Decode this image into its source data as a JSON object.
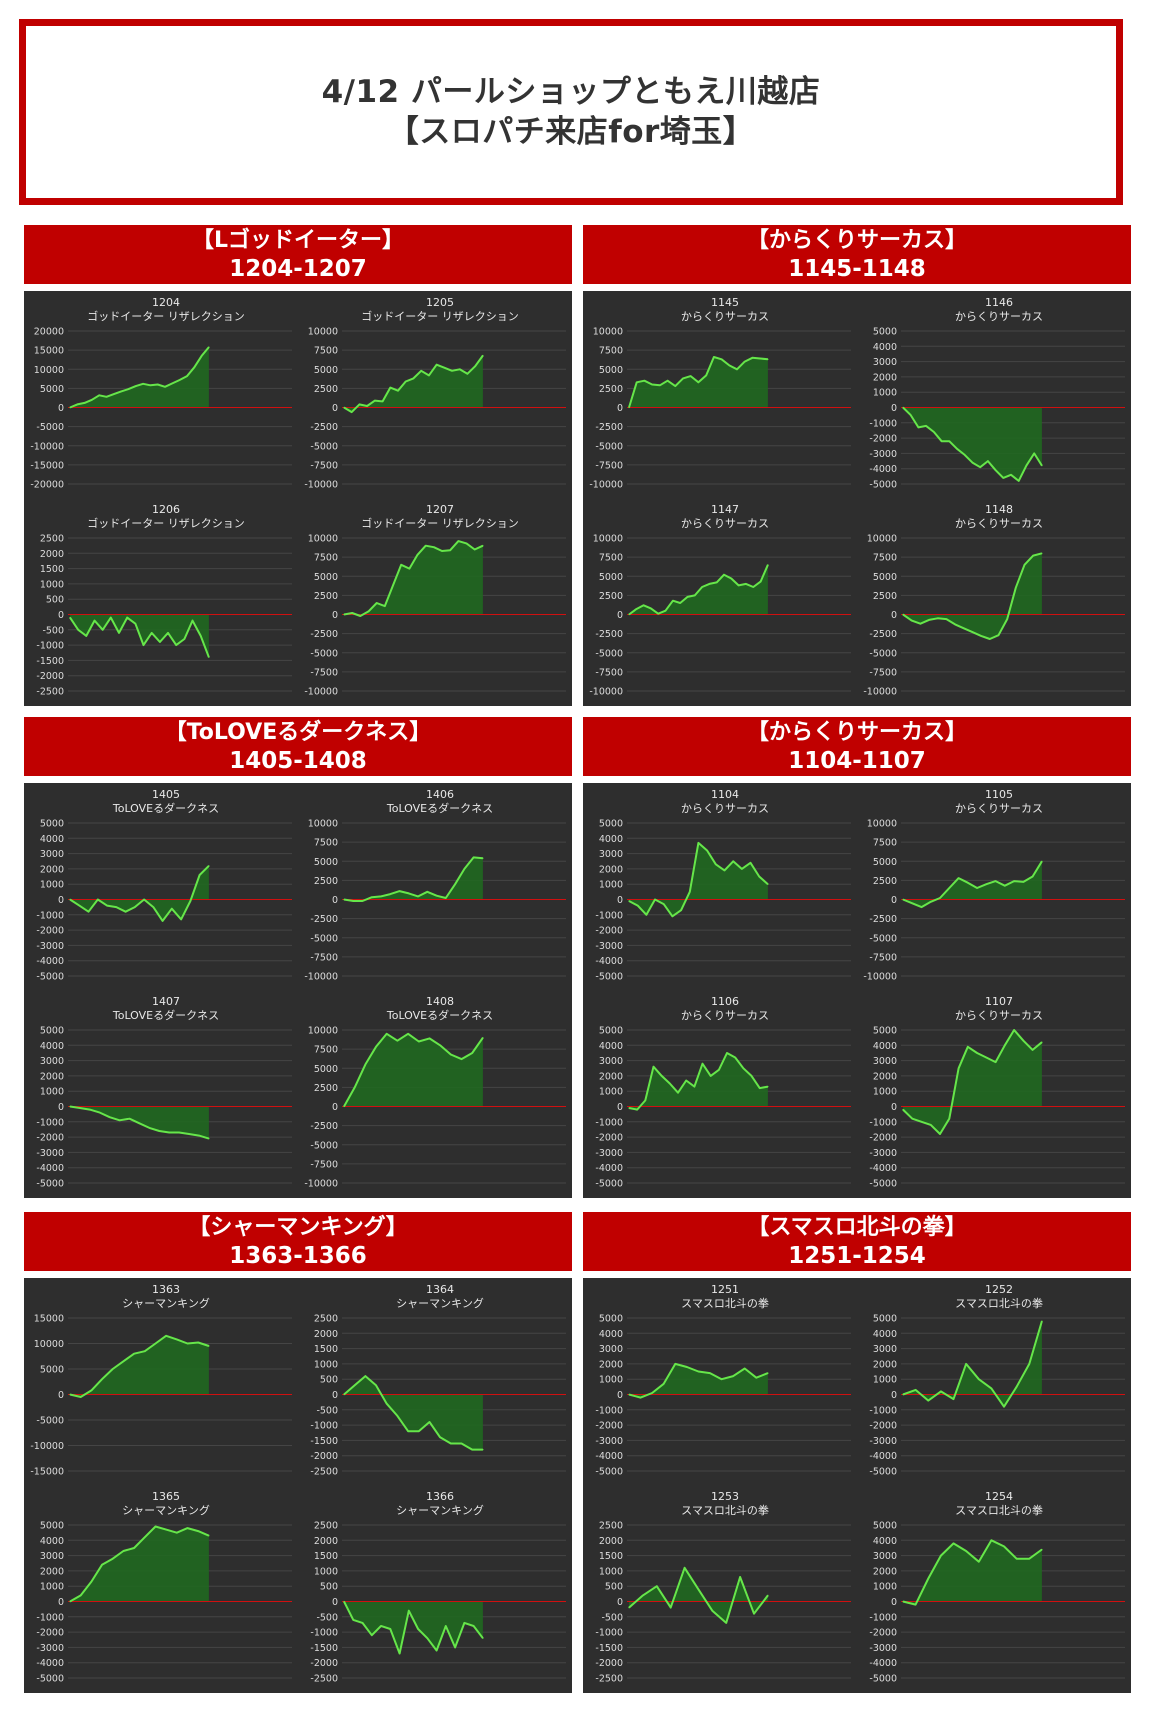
{
  "header": {
    "line1": "4/12 パールショップともえ川越店",
    "line2": "【スロパチ来店for埼玉】"
  },
  "colors": {
    "accent": "#c00000",
    "panel": "#2e2e2e",
    "line": "#66e64a",
    "fill": "#1f6b1f",
    "zero": "#d01010"
  },
  "groups": [
    {
      "title": "【Lゴッドイーター】",
      "range": "1204-1207",
      "charts": [
        {
          "type": "area",
          "number": "1204",
          "name": "ゴッドイーター リザレクション",
          "yticks": [
            20000,
            15000,
            10000,
            5000,
            0,
            -5000,
            -10000,
            -15000,
            -20000
          ],
          "ylim": [
            -20000,
            20000
          ],
          "values": [
            0,
            800,
            1200,
            2000,
            3200,
            2800,
            3500,
            4200,
            4800,
            5600,
            6200,
            5800,
            6000,
            5400,
            6300,
            7200,
            8200,
            10500,
            13500,
            15800
          ]
        },
        {
          "type": "area",
          "number": "1205",
          "name": "ゴッドイーター リザレクション",
          "yticks": [
            10000,
            7500,
            5000,
            2500,
            0,
            -2500,
            -5000,
            -7500,
            -10000
          ],
          "ylim": [
            -10000,
            10000
          ],
          "values": [
            0,
            -600,
            400,
            200,
            900,
            800,
            2600,
            2200,
            3400,
            3800,
            4800,
            4200,
            5600,
            5200,
            4800,
            5000,
            4400,
            5400,
            6800
          ]
        },
        {
          "type": "area",
          "number": "1206",
          "name": "ゴッドイーター リザレクション",
          "yticks": [
            2500,
            2000,
            1500,
            1000,
            500,
            0,
            -500,
            -1000,
            -1500,
            -2000,
            -2500
          ],
          "ylim": [
            -2500,
            2500
          ],
          "values": [
            -100,
            -500,
            -700,
            -200,
            -500,
            -100,
            -600,
            -100,
            -300,
            -1000,
            -600,
            -900,
            -600,
            -1000,
            -800,
            -200,
            -700,
            -1400
          ]
        },
        {
          "type": "area",
          "number": "1207",
          "name": "ゴッドイーター リザレクション",
          "yticks": [
            10000,
            7500,
            5000,
            2500,
            0,
            -2500,
            -5000,
            -7500,
            -10000
          ],
          "ylim": [
            -10000,
            10000
          ],
          "values": [
            0,
            200,
            -200,
            400,
            1500,
            1100,
            3800,
            6500,
            6000,
            7800,
            9000,
            8800,
            8300,
            8400,
            9600,
            9300,
            8500,
            9000
          ]
        }
      ]
    },
    {
      "title": "【からくりサーカス】",
      "range": "1145-1148",
      "charts": [
        {
          "type": "area",
          "number": "1145",
          "name": "からくりサーカス",
          "yticks": [
            10000,
            7500,
            5000,
            2500,
            0,
            -2500,
            -5000,
            -7500,
            -10000
          ],
          "ylim": [
            -10000,
            10000
          ],
          "values": [
            0,
            3300,
            3500,
            3000,
            2900,
            3500,
            2800,
            3800,
            4100,
            3300,
            4200,
            6600,
            6300,
            5500,
            5000,
            6000,
            6500,
            6400,
            6300
          ]
        },
        {
          "type": "area",
          "number": "1146",
          "name": "からくりサーカス",
          "yticks": [
            5000,
            4000,
            3000,
            2000,
            1000,
            0,
            -1000,
            -2000,
            -3000,
            -4000,
            -5000
          ],
          "ylim": [
            -5000,
            5000
          ],
          "values": [
            0,
            -500,
            -1300,
            -1200,
            -1600,
            -2200,
            -2200,
            -2700,
            -3100,
            -3600,
            -3900,
            -3500,
            -4100,
            -4600,
            -4400,
            -4800,
            -3800,
            -3000,
            -3800
          ]
        },
        {
          "type": "area",
          "number": "1147",
          "name": "からくりサーカス",
          "yticks": [
            10000,
            7500,
            5000,
            2500,
            0,
            -2500,
            -5000,
            -7500,
            -10000
          ],
          "ylim": [
            -10000,
            10000
          ],
          "values": [
            0,
            700,
            1200,
            800,
            100,
            500,
            1800,
            1500,
            2300,
            2500,
            3600,
            4000,
            4200,
            5200,
            4700,
            3800,
            4000,
            3600,
            4300,
            6500
          ]
        },
        {
          "type": "area",
          "number": "1148",
          "name": "からくりサーカス",
          "yticks": [
            10000,
            7500,
            5000,
            2500,
            0,
            -2500,
            -5000,
            -7500,
            -10000
          ],
          "ylim": [
            -10000,
            10000
          ],
          "values": [
            0,
            -800,
            -1200,
            -700,
            -500,
            -600,
            -1300,
            -1800,
            -2300,
            -2800,
            -3200,
            -2700,
            -600,
            3500,
            6500,
            7700,
            8000
          ]
        }
      ]
    },
    {
      "title": "【ToLOVEるダークネス】",
      "range": "1405-1408",
      "charts": [
        {
          "type": "area",
          "number": "1405",
          "name": "ToLOVEるダークネス",
          "yticks": [
            5000,
            4000,
            3000,
            2000,
            1000,
            0,
            -1000,
            -2000,
            -3000,
            -4000,
            -5000
          ],
          "ylim": [
            -5000,
            5000
          ],
          "values": [
            0,
            -400,
            -800,
            0,
            -400,
            -500,
            -800,
            -500,
            0,
            -500,
            -1400,
            -600,
            -1300,
            -100,
            1600,
            2200
          ]
        },
        {
          "type": "area",
          "number": "1406",
          "name": "ToLOVEるダークネス",
          "yticks": [
            10000,
            7500,
            5000,
            2500,
            0,
            -2500,
            -5000,
            -7500,
            -10000
          ],
          "ylim": [
            -10000,
            10000
          ],
          "values": [
            0,
            -200,
            -200,
            300,
            400,
            700,
            1100,
            800,
            400,
            1000,
            500,
            200,
            2000,
            4000,
            5500,
            5400
          ]
        },
        {
          "type": "area",
          "number": "1407",
          "name": "ToLOVEるダークネス",
          "yticks": [
            5000,
            4000,
            3000,
            2000,
            1000,
            0,
            -1000,
            -2000,
            -3000,
            -4000,
            -5000
          ],
          "ylim": [
            -5000,
            5000
          ],
          "values": [
            0,
            -100,
            -200,
            -400,
            -700,
            -900,
            -800,
            -1100,
            -1400,
            -1600,
            -1700,
            -1700,
            -1800,
            -1900,
            -2100
          ]
        },
        {
          "type": "area",
          "number": "1408",
          "name": "ToLOVEるダークネス",
          "yticks": [
            10000,
            7500,
            5000,
            2500,
            0,
            -2500,
            -5000,
            -7500,
            -10000
          ],
          "ylim": [
            -10000,
            10000
          ],
          "values": [
            0,
            2500,
            5500,
            7800,
            9500,
            8600,
            9500,
            8500,
            8900,
            8000,
            6800,
            6200,
            7000,
            9000
          ]
        }
      ]
    },
    {
      "title": "【からくりサーカス】",
      "range": "1104-1107",
      "charts": [
        {
          "type": "area",
          "number": "1104",
          "name": "からくりサーカス",
          "yticks": [
            5000,
            4000,
            3000,
            2000,
            1000,
            0,
            -1000,
            -2000,
            -3000,
            -4000,
            -5000
          ],
          "ylim": [
            -5000,
            5000
          ],
          "values": [
            -100,
            -400,
            -1000,
            0,
            -300,
            -1100,
            -700,
            500,
            3700,
            3200,
            2300,
            1900,
            2500,
            2000,
            2400,
            1500,
            1000
          ]
        },
        {
          "type": "area",
          "number": "1105",
          "name": "からくりサーカス",
          "yticks": [
            10000,
            7500,
            5000,
            2500,
            0,
            -2500,
            -5000,
            -7500,
            -10000
          ],
          "ylim": [
            -10000,
            10000
          ],
          "values": [
            0,
            -500,
            -1000,
            -300,
            200,
            1500,
            2800,
            2200,
            1500,
            2000,
            2400,
            1800,
            2400,
            2300,
            3000,
            5000
          ]
        },
        {
          "type": "area",
          "number": "1106",
          "name": "からくりサーカス",
          "yticks": [
            5000,
            4000,
            3000,
            2000,
            1000,
            0,
            -1000,
            -2000,
            -3000,
            -4000,
            -5000
          ],
          "ylim": [
            -5000,
            5000
          ],
          "values": [
            -100,
            -200,
            400,
            2600,
            2000,
            1500,
            900,
            1700,
            1300,
            2800,
            2000,
            2400,
            3500,
            3200,
            2500,
            2000,
            1200,
            1300
          ]
        },
        {
          "type": "area",
          "number": "1107",
          "name": "からくりサーカス",
          "yticks": [
            5000,
            4000,
            3000,
            2000,
            1000,
            0,
            -1000,
            -2000,
            -3000,
            -4000,
            -5000
          ],
          "ylim": [
            -5000,
            5000
          ],
          "values": [
            -200,
            -800,
            -1000,
            -1200,
            -1800,
            -800,
            2500,
            3900,
            3500,
            3200,
            2900,
            4000,
            5000,
            4300,
            3700,
            4200
          ]
        }
      ]
    },
    {
      "title": "【シャーマンキング】",
      "range": "1363-1366",
      "charts": [
        {
          "type": "area",
          "number": "1363",
          "name": "シャーマンキング",
          "yticks": [
            15000,
            10000,
            5000,
            0,
            -5000,
            -10000,
            -15000
          ],
          "ylim": [
            -15000,
            15000
          ],
          "values": [
            0,
            -500,
            800,
            3000,
            5000,
            6500,
            8000,
            8500,
            10000,
            11500,
            10800,
            10000,
            10200,
            9500
          ]
        },
        {
          "type": "area",
          "number": "1364",
          "name": "シャーマンキング",
          "yticks": [
            2500,
            2000,
            1500,
            1000,
            500,
            0,
            -500,
            -1000,
            -1500,
            -2000,
            -2500
          ],
          "ylim": [
            -2500,
            2500
          ],
          "values": [
            0,
            300,
            600,
            300,
            -300,
            -700,
            -1200,
            -1200,
            -900,
            -1400,
            -1600,
            -1600,
            -1800,
            -1800
          ]
        },
        {
          "type": "area",
          "number": "1365",
          "name": "シャーマンキング",
          "yticks": [
            5000,
            4000,
            3000,
            2000,
            1000,
            0,
            -1000,
            -2000,
            -3000,
            -4000,
            -5000
          ],
          "ylim": [
            -5000,
            5000
          ],
          "values": [
            0,
            400,
            1300,
            2400,
            2800,
            3300,
            3500,
            4200,
            4900,
            4700,
            4500,
            4800,
            4600,
            4300
          ]
        },
        {
          "type": "area",
          "number": "1366",
          "name": "シャーマンキング",
          "yticks": [
            2500,
            2000,
            1500,
            1000,
            500,
            0,
            -500,
            -1000,
            -1500,
            -2000,
            -2500
          ],
          "ylim": [
            -2500,
            2500
          ],
          "values": [
            0,
            -600,
            -700,
            -1100,
            -800,
            -900,
            -1700,
            -300,
            -900,
            -1200,
            -1600,
            -800,
            -1500,
            -700,
            -800,
            -1200
          ]
        }
      ]
    },
    {
      "title": "【スマスロ北斗の拳】",
      "range": "1251-1254",
      "charts": [
        {
          "type": "area",
          "number": "1251",
          "name": "スマスロ北斗の拳",
          "yticks": [
            5000,
            4000,
            3000,
            2000,
            1000,
            0,
            -1000,
            -2000,
            -3000,
            -4000,
            -5000
          ],
          "ylim": [
            -5000,
            5000
          ],
          "values": [
            0,
            -200,
            100,
            700,
            2000,
            1800,
            1500,
            1400,
            1000,
            1200,
            1700,
            1100,
            1400
          ]
        },
        {
          "type": "area",
          "number": "1252",
          "name": "スマスロ北斗の拳",
          "yticks": [
            5000,
            4000,
            3000,
            2000,
            1000,
            0,
            -1000,
            -2000,
            -3000,
            -4000,
            -5000
          ],
          "ylim": [
            -5000,
            5000
          ],
          "values": [
            0,
            300,
            -400,
            200,
            -300,
            2000,
            1000,
            400,
            -800,
            500,
            2000,
            4800
          ]
        },
        {
          "type": "area",
          "number": "1253",
          "name": "スマスロ北斗の拳",
          "yticks": [
            2500,
            2000,
            1500,
            1000,
            500,
            0,
            -500,
            -1000,
            -1500,
            -2000,
            -2500
          ],
          "ylim": [
            -2500,
            2500
          ],
          "values": [
            -200,
            200,
            500,
            -200,
            1100,
            400,
            -300,
            -700,
            800,
            -400,
            200
          ]
        },
        {
          "type": "area",
          "number": "1254",
          "name": "スマスロ北斗の拳",
          "yticks": [
            5000,
            4000,
            3000,
            2000,
            1000,
            0,
            -1000,
            -2000,
            -3000,
            -4000,
            -5000
          ],
          "ylim": [
            -5000,
            5000
          ],
          "values": [
            0,
            -200,
            1500,
            3000,
            3800,
            3300,
            2600,
            4000,
            3600,
            2800,
            2800,
            3400
          ]
        }
      ]
    }
  ],
  "chart_data": [
    {
      "type": "area",
      "title": "1204 ゴッドイーター リザレクション",
      "ylim": [
        -20000,
        20000
      ],
      "values": [
        0,
        800,
        1200,
        2000,
        3200,
        2800,
        3500,
        4200,
        4800,
        5600,
        6200,
        5800,
        6000,
        5400,
        6300,
        7200,
        8200,
        10500,
        13500,
        15800
      ]
    },
    {
      "type": "area",
      "title": "1205 ゴッドイーター リザレクション",
      "ylim": [
        -10000,
        10000
      ],
      "values": [
        0,
        -600,
        400,
        200,
        900,
        800,
        2600,
        2200,
        3400,
        3800,
        4800,
        4200,
        5600,
        5200,
        4800,
        5000,
        4400,
        5400,
        6800
      ]
    },
    {
      "type": "area",
      "title": "1206 ゴッドイーター リザレクション",
      "ylim": [
        -2500,
        2500
      ],
      "values": [
        -100,
        -500,
        -700,
        -200,
        -500,
        -100,
        -600,
        -100,
        -300,
        -1000,
        -600,
        -900,
        -600,
        -1000,
        -800,
        -200,
        -700,
        -1400
      ]
    },
    {
      "type": "area",
      "title": "1207 ゴッドイーター リザレクション",
      "ylim": [
        -10000,
        10000
      ],
      "values": [
        0,
        200,
        -200,
        400,
        1500,
        1100,
        3800,
        6500,
        6000,
        7800,
        9000,
        8800,
        8300,
        8400,
        9600,
        9300,
        8500,
        9000
      ]
    }
  ]
}
